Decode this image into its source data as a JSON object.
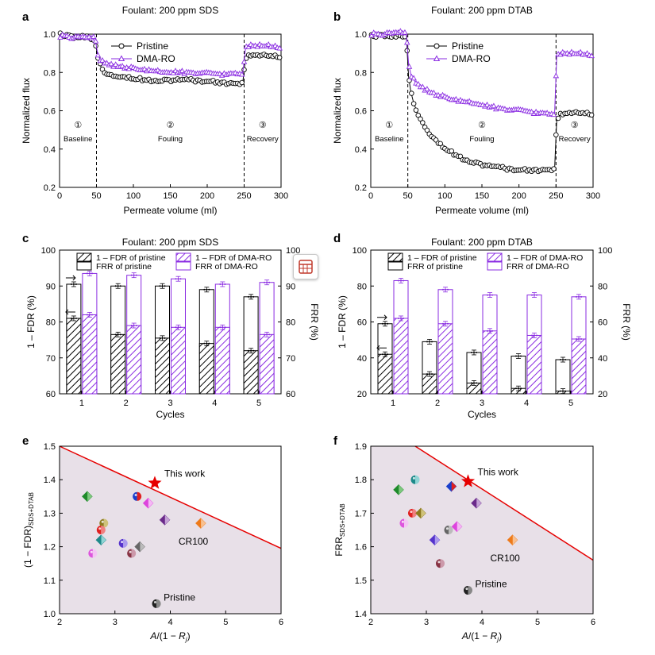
{
  "colors": {
    "pristine": "#000000",
    "dma": "#8a2be2",
    "boundary": "#e60000",
    "region": "#e8e0e8",
    "star": "#e60000"
  },
  "chart_data": [
    {
      "panel": "a",
      "type": "line",
      "title": "Foulant: 200 ppm SDS",
      "xlabel": "Permeate volume (ml)",
      "ylabel": "Normalized flux",
      "xlim": [
        0,
        300
      ],
      "ylim": [
        0.2,
        1.0
      ],
      "xticks": [
        0,
        50,
        100,
        150,
        200,
        250,
        300
      ],
      "yticks": [
        0.2,
        0.4,
        0.6,
        0.8,
        1.0
      ],
      "phase_lines": [
        50,
        250
      ],
      "phases": [
        {
          "num": "①",
          "label": "Baseline",
          "x": 25
        },
        {
          "num": "②",
          "label": "Fouling",
          "x": 150
        },
        {
          "num": "③",
          "label": "Recovery",
          "x": 275
        }
      ],
      "series": [
        {
          "name": "Pristine",
          "marker": "circle",
          "points": [
            [
              0,
              1.0
            ],
            [
              10,
              0.99
            ],
            [
              20,
              0.98
            ],
            [
              30,
              0.99
            ],
            [
              40,
              0.98
            ],
            [
              48,
              0.97
            ],
            [
              52,
              0.87
            ],
            [
              56,
              0.83
            ],
            [
              62,
              0.8
            ],
            [
              70,
              0.79
            ],
            [
              85,
              0.78
            ],
            [
              100,
              0.77
            ],
            [
              120,
              0.76
            ],
            [
              150,
              0.76
            ],
            [
              180,
              0.76
            ],
            [
              210,
              0.75
            ],
            [
              240,
              0.74
            ],
            [
              248,
              0.74
            ],
            [
              252,
              0.88
            ],
            [
              260,
              0.89
            ],
            [
              280,
              0.89
            ],
            [
              300,
              0.88
            ]
          ]
        },
        {
          "name": "DMA-RO",
          "marker": "triangle",
          "points": [
            [
              0,
              0.99
            ],
            [
              10,
              0.99
            ],
            [
              20,
              0.98
            ],
            [
              30,
              0.98
            ],
            [
              40,
              0.98
            ],
            [
              48,
              0.98
            ],
            [
              52,
              0.89
            ],
            [
              56,
              0.86
            ],
            [
              62,
              0.85
            ],
            [
              70,
              0.84
            ],
            [
              85,
              0.83
            ],
            [
              100,
              0.82
            ],
            [
              120,
              0.81
            ],
            [
              150,
              0.8
            ],
            [
              180,
              0.8
            ],
            [
              210,
              0.79
            ],
            [
              240,
              0.79
            ],
            [
              248,
              0.79
            ],
            [
              252,
              0.93
            ],
            [
              260,
              0.94
            ],
            [
              280,
              0.94
            ],
            [
              300,
              0.93
            ]
          ]
        }
      ]
    },
    {
      "panel": "b",
      "type": "line",
      "title": "Foulant: 200 ppm DTAB",
      "xlabel": "Permeate volume (ml)",
      "ylabel": "Normalized flux",
      "xlim": [
        0,
        300
      ],
      "ylim": [
        0.2,
        1.0
      ],
      "xticks": [
        0,
        50,
        100,
        150,
        200,
        250,
        300
      ],
      "yticks": [
        0.2,
        0.4,
        0.6,
        0.8,
        1.0
      ],
      "phase_lines": [
        50,
        250
      ],
      "phases": [
        {
          "num": "①",
          "label": "Baseline",
          "x": 25
        },
        {
          "num": "②",
          "label": "Fouling",
          "x": 150
        },
        {
          "num": "③",
          "label": "Recovery",
          "x": 275
        }
      ],
      "series": [
        {
          "name": "Pristine",
          "marker": "circle",
          "points": [
            [
              0,
              0.99
            ],
            [
              10,
              0.99
            ],
            [
              20,
              0.99
            ],
            [
              30,
              0.99
            ],
            [
              40,
              0.99
            ],
            [
              48,
              0.99
            ],
            [
              51,
              0.78
            ],
            [
              54,
              0.7
            ],
            [
              58,
              0.64
            ],
            [
              63,
              0.59
            ],
            [
              70,
              0.54
            ],
            [
              80,
              0.48
            ],
            [
              95,
              0.42
            ],
            [
              110,
              0.38
            ],
            [
              125,
              0.35
            ],
            [
              140,
              0.33
            ],
            [
              160,
              0.31
            ],
            [
              180,
              0.3
            ],
            [
              200,
              0.29
            ],
            [
              220,
              0.29
            ],
            [
              240,
              0.29
            ],
            [
              248,
              0.29
            ],
            [
              251,
              0.56
            ],
            [
              256,
              0.58
            ],
            [
              270,
              0.59
            ],
            [
              285,
              0.59
            ],
            [
              300,
              0.58
            ]
          ]
        },
        {
          "name": "DMA-RO",
          "marker": "triangle",
          "points": [
            [
              0,
              1.0
            ],
            [
              10,
              1.0
            ],
            [
              20,
              1.0
            ],
            [
              30,
              1.0
            ],
            [
              40,
              1.01
            ],
            [
              48,
              1.0
            ],
            [
              51,
              0.85
            ],
            [
              54,
              0.79
            ],
            [
              60,
              0.75
            ],
            [
              70,
              0.72
            ],
            [
              85,
              0.69
            ],
            [
              100,
              0.67
            ],
            [
              120,
              0.65
            ],
            [
              140,
              0.64
            ],
            [
              160,
              0.62
            ],
            [
              180,
              0.61
            ],
            [
              200,
              0.6
            ],
            [
              220,
              0.59
            ],
            [
              240,
              0.58
            ],
            [
              248,
              0.58
            ],
            [
              251,
              0.89
            ],
            [
              260,
              0.9
            ],
            [
              280,
              0.9
            ],
            [
              300,
              0.89
            ]
          ]
        }
      ]
    },
    {
      "panel": "c",
      "type": "bar",
      "title": "Foulant: 200 ppm SDS",
      "xlabel": "Cycles",
      "ylabel": "1 – FDR (%)",
      "ylabel2": "FRR (%)",
      "categories": [
        "1",
        "2",
        "3",
        "4",
        "5"
      ],
      "ylim": [
        60,
        100
      ],
      "yticks": [
        60,
        70,
        80,
        90,
        100
      ],
      "series": [
        {
          "name": "1 – FDR of pristine",
          "values": [
            81,
            76.5,
            75.5,
            74,
            72
          ]
        },
        {
          "name": "FRR of pristine",
          "values": [
            90.5,
            90,
            90,
            89,
            87
          ]
        },
        {
          "name": "1 – FDR of DMA-RO",
          "values": [
            82,
            79,
            78.5,
            78.5,
            76.5
          ]
        },
        {
          "name": "FRR of DMA-RO",
          "values": [
            93.5,
            93,
            92,
            90.5,
            91
          ]
        }
      ]
    },
    {
      "panel": "d",
      "type": "bar",
      "title": "Foulant: 200 ppm DTAB",
      "xlabel": "Cycles",
      "ylabel": "1 – FDR (%)",
      "ylabel2": "FRR (%)",
      "categories": [
        "1",
        "2",
        "3",
        "4",
        "5"
      ],
      "ylim": [
        20,
        100
      ],
      "yticks": [
        20,
        40,
        60,
        80,
        100
      ],
      "series": [
        {
          "name": "1 – FDR of pristine",
          "values": [
            42,
            31,
            26,
            23,
            21.5
          ]
        },
        {
          "name": "FRR of pristine",
          "values": [
            59,
            49,
            43,
            41,
            39
          ]
        },
        {
          "name": "1 – FDR of DMA-RO",
          "values": [
            62,
            59,
            55,
            52.5,
            50.5
          ]
        },
        {
          "name": "FRR of DMA-RO",
          "values": [
            83,
            78,
            75,
            75,
            74
          ]
        }
      ]
    },
    {
      "panel": "e",
      "type": "scatter",
      "xlabel": "A/(1 − R_j)",
      "ylabel": "(1 − FDR)_SDS+DTAB",
      "xlim": [
        2,
        6
      ],
      "ylim": [
        1.0,
        1.5
      ],
      "xticks": [
        2,
        3,
        4,
        5,
        6
      ],
      "yticks": [
        1.0,
        1.1,
        1.2,
        1.3,
        1.4,
        1.5
      ],
      "boundary": [
        [
          2,
          1.5
        ],
        [
          6,
          1.195
        ]
      ],
      "points": [
        {
          "x": 2.5,
          "y": 1.35,
          "c1": "#1e8a2a",
          "c2": "#7ec87e"
        },
        {
          "x": 2.8,
          "y": 1.27,
          "c1": "#8c7a1e",
          "c2": "#cfc27a"
        },
        {
          "x": 2.75,
          "y": 1.25,
          "c1": "#e02020",
          "c2": "#f08080"
        },
        {
          "x": 2.75,
          "y": 1.22,
          "c1": "#1e8a8a",
          "c2": "#8fd4d4"
        },
        {
          "x": 2.6,
          "y": 1.18,
          "c1": "#dd55dd",
          "c2": "#f4c4f4"
        },
        {
          "x": 3.15,
          "y": 1.21,
          "c1": "#5533cc",
          "c2": "#aa99ee"
        },
        {
          "x": 3.45,
          "y": 1.2,
          "c1": "#666666",
          "c2": "#bbbbbb"
        },
        {
          "x": 3.3,
          "y": 1.18,
          "c1": "#883344",
          "c2": "#cc99aa"
        },
        {
          "x": 3.4,
          "y": 1.35,
          "c1": "#1a3fcc",
          "c2": "#e02020"
        },
        {
          "x": 3.6,
          "y": 1.33,
          "c1": "#dd44dd",
          "c2": "#f5b8f5"
        },
        {
          "x": 3.9,
          "y": 1.28,
          "c1": "#6a2a8a",
          "c2": "#c4a2d6"
        },
        {
          "x": 4.55,
          "y": 1.27,
          "c1": "#ee7a1a",
          "c2": "#f8c090"
        },
        {
          "x": 3.75,
          "y": 1.03,
          "c1": "#222222",
          "c2": "#888888"
        }
      ],
      "star": {
        "x": 3.72,
        "y": 1.39
      },
      "labels": {
        "this_work": "This work",
        "cr100": "CR100",
        "pristine": "Pristine"
      }
    },
    {
      "panel": "f",
      "type": "scatter",
      "xlabel": "A/(1 − R_j)",
      "ylabel": "FRR_SDS+DTAB",
      "xlim": [
        2,
        6
      ],
      "ylim": [
        1.4,
        1.9
      ],
      "xticks": [
        2,
        3,
        4,
        5,
        6
      ],
      "yticks": [
        1.4,
        1.5,
        1.6,
        1.7,
        1.8,
        1.9
      ],
      "boundary": [
        [
          2.8,
          1.9
        ],
        [
          6,
          1.56
        ]
      ],
      "points": [
        {
          "x": 2.5,
          "y": 1.77,
          "c1": "#1e8a2a",
          "c2": "#7ec87e"
        },
        {
          "x": 2.8,
          "y": 1.8,
          "c1": "#1e8a8a",
          "c2": "#8fd4d4"
        },
        {
          "x": 2.75,
          "y": 1.7,
          "c1": "#e02020",
          "c2": "#f08080"
        },
        {
          "x": 2.9,
          "y": 1.7,
          "c1": "#8c7a1e",
          "c2": "#cfc27a"
        },
        {
          "x": 2.6,
          "y": 1.67,
          "c1": "#dd55dd",
          "c2": "#f4c4f4"
        },
        {
          "x": 3.4,
          "y": 1.65,
          "c1": "#666666",
          "c2": "#bbbbbb"
        },
        {
          "x": 3.15,
          "y": 1.62,
          "c1": "#5533cc",
          "c2": "#aa99ee"
        },
        {
          "x": 3.55,
          "y": 1.66,
          "c1": "#dd44dd",
          "c2": "#f5b8f5"
        },
        {
          "x": 3.25,
          "y": 1.55,
          "c1": "#883344",
          "c2": "#cc99aa"
        },
        {
          "x": 3.45,
          "y": 1.78,
          "c1": "#1a3fcc",
          "c2": "#e02020"
        },
        {
          "x": 3.9,
          "y": 1.73,
          "c1": "#6a2a8a",
          "c2": "#c4a2d6"
        },
        {
          "x": 4.55,
          "y": 1.62,
          "c1": "#ee7a1a",
          "c2": "#f8c090"
        },
        {
          "x": 3.75,
          "y": 1.47,
          "c1": "#222222",
          "c2": "#888888"
        }
      ],
      "star": {
        "x": 3.75,
        "y": 1.795
      },
      "labels": {
        "this_work": "This work",
        "cr100": "CR100",
        "pristine": "Pristine"
      }
    }
  ]
}
